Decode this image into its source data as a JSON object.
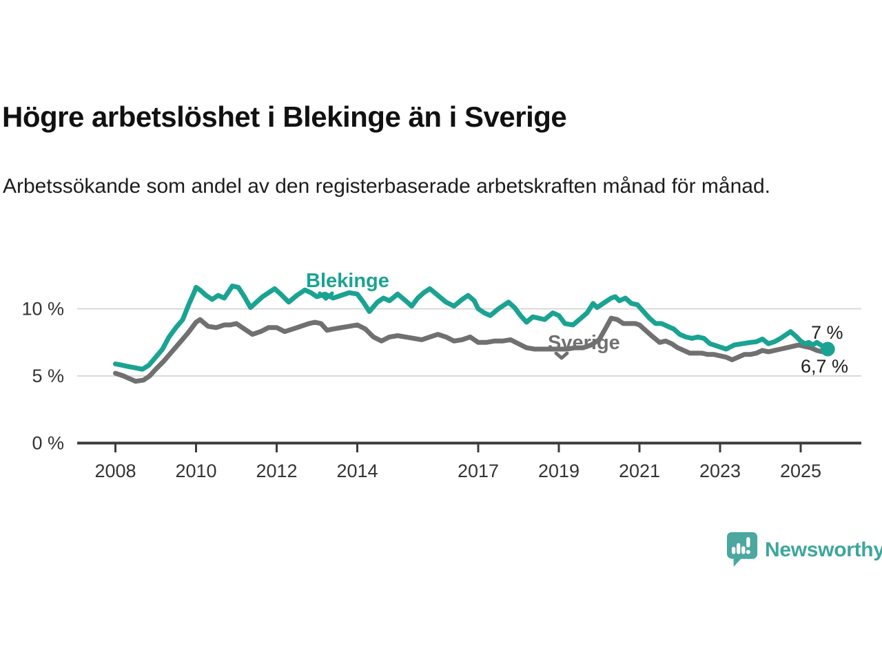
{
  "chart_data": {
    "type": "line",
    "title": "Högre arbetslöshet i Blekinge än i Sverige",
    "subtitle": "Arbetssökande som andel av den registerbaserade arbetskraften månad för månad.",
    "unit": "%",
    "grid": "horizontal",
    "legend_position": "inline-labels",
    "x_range": [
      2008,
      2025.67
    ],
    "ylim": [
      0,
      12.8
    ],
    "x_axis": {
      "ticks": [
        2008,
        2010,
        2012,
        2014,
        2017,
        2019,
        2021,
        2023,
        2025
      ]
    },
    "y_axis": {
      "ticks": [
        {
          "value": 10,
          "label": "10 %"
        },
        {
          "value": 5,
          "label": "5 %"
        },
        {
          "value": 0,
          "label": "0 %"
        }
      ]
    },
    "series": [
      {
        "name": "Blekinge",
        "color": "#1aa392",
        "end_label": "7 %",
        "end_dot": true,
        "points": [
          [
            2008.0,
            5.9
          ],
          [
            2008.17,
            5.8
          ],
          [
            2008.33,
            5.7
          ],
          [
            2008.5,
            5.6
          ],
          [
            2008.67,
            5.5
          ],
          [
            2008.83,
            5.8
          ],
          [
            2009.0,
            6.4
          ],
          [
            2009.17,
            7.0
          ],
          [
            2009.33,
            7.9
          ],
          [
            2009.5,
            8.6
          ],
          [
            2009.67,
            9.2
          ],
          [
            2009.83,
            10.4
          ],
          [
            2009.95,
            11.2
          ],
          [
            2010.0,
            11.6
          ],
          [
            2010.1,
            11.4
          ],
          [
            2010.25,
            11.0
          ],
          [
            2010.4,
            10.7
          ],
          [
            2010.55,
            11.0
          ],
          [
            2010.7,
            10.8
          ],
          [
            2010.9,
            11.7
          ],
          [
            2011.05,
            11.6
          ],
          [
            2011.2,
            10.9
          ],
          [
            2011.35,
            10.1
          ],
          [
            2011.5,
            10.5
          ],
          [
            2011.65,
            10.9
          ],
          [
            2011.8,
            11.2
          ],
          [
            2011.95,
            11.5
          ],
          [
            2012.1,
            11.1
          ],
          [
            2012.3,
            10.5
          ],
          [
            2012.5,
            11.0
          ],
          [
            2012.7,
            11.4
          ],
          [
            2012.85,
            11.2
          ],
          [
            2013.0,
            10.9
          ],
          [
            2013.2,
            11.1
          ],
          [
            2013.4,
            10.8
          ],
          [
            2013.6,
            11.0
          ],
          [
            2013.8,
            11.2
          ],
          [
            2014.0,
            11.1
          ],
          [
            2014.15,
            10.5
          ],
          [
            2014.3,
            9.8
          ],
          [
            2014.5,
            10.5
          ],
          [
            2014.65,
            10.8
          ],
          [
            2014.8,
            10.6
          ],
          [
            2015.0,
            11.1
          ],
          [
            2015.2,
            10.6
          ],
          [
            2015.35,
            10.2
          ],
          [
            2015.5,
            10.8
          ],
          [
            2015.65,
            11.2
          ],
          [
            2015.8,
            11.5
          ],
          [
            2016.0,
            11.0
          ],
          [
            2016.2,
            10.5
          ],
          [
            2016.4,
            10.2
          ],
          [
            2016.6,
            10.7
          ],
          [
            2016.75,
            11.0
          ],
          [
            2016.9,
            10.6
          ],
          [
            2017.0,
            10.0
          ],
          [
            2017.15,
            9.7
          ],
          [
            2017.3,
            9.5
          ],
          [
            2017.5,
            10.0
          ],
          [
            2017.75,
            10.5
          ],
          [
            2017.9,
            10.1
          ],
          [
            2018.05,
            9.5
          ],
          [
            2018.2,
            9.0
          ],
          [
            2018.35,
            9.4
          ],
          [
            2018.5,
            9.3
          ],
          [
            2018.65,
            9.2
          ],
          [
            2018.85,
            9.7
          ],
          [
            2019.0,
            9.5
          ],
          [
            2019.15,
            8.9
          ],
          [
            2019.35,
            8.8
          ],
          [
            2019.55,
            9.3
          ],
          [
            2019.7,
            9.7
          ],
          [
            2019.85,
            10.4
          ],
          [
            2019.95,
            10.1
          ],
          [
            2020.1,
            10.4
          ],
          [
            2020.3,
            10.8
          ],
          [
            2020.4,
            10.9
          ],
          [
            2020.5,
            10.6
          ],
          [
            2020.65,
            10.8
          ],
          [
            2020.8,
            10.4
          ],
          [
            2020.95,
            10.3
          ],
          [
            2021.1,
            9.8
          ],
          [
            2021.25,
            9.3
          ],
          [
            2021.4,
            8.9
          ],
          [
            2021.55,
            8.9
          ],
          [
            2021.7,
            8.7
          ],
          [
            2021.85,
            8.5
          ],
          [
            2022.0,
            8.1
          ],
          [
            2022.15,
            7.9
          ],
          [
            2022.3,
            7.8
          ],
          [
            2022.45,
            7.9
          ],
          [
            2022.6,
            7.8
          ],
          [
            2022.75,
            7.4
          ],
          [
            2022.95,
            7.2
          ],
          [
            2023.15,
            7.0
          ],
          [
            2023.35,
            7.3
          ],
          [
            2023.55,
            7.4
          ],
          [
            2023.75,
            7.5
          ],
          [
            2023.9,
            7.55
          ],
          [
            2024.05,
            7.75
          ],
          [
            2024.2,
            7.4
          ],
          [
            2024.35,
            7.55
          ],
          [
            2024.5,
            7.8
          ],
          [
            2024.65,
            8.1
          ],
          [
            2024.75,
            8.3
          ],
          [
            2024.9,
            7.9
          ],
          [
            2025.0,
            7.6
          ],
          [
            2025.1,
            7.4
          ],
          [
            2025.2,
            7.5
          ],
          [
            2025.3,
            7.3
          ],
          [
            2025.4,
            7.5
          ],
          [
            2025.55,
            7.2
          ],
          [
            2025.67,
            7.0
          ]
        ]
      },
      {
        "name": "Sverige",
        "color": "#707070",
        "end_label": "6,7 %",
        "end_dot": false,
        "points": [
          [
            2008.0,
            5.2
          ],
          [
            2008.2,
            5.0
          ],
          [
            2008.35,
            4.8
          ],
          [
            2008.5,
            4.6
          ],
          [
            2008.7,
            4.7
          ],
          [
            2008.85,
            5.0
          ],
          [
            2009.0,
            5.5
          ],
          [
            2009.2,
            6.1
          ],
          [
            2009.4,
            6.8
          ],
          [
            2009.6,
            7.5
          ],
          [
            2009.8,
            8.2
          ],
          [
            2010.0,
            9.0
          ],
          [
            2010.1,
            9.2
          ],
          [
            2010.3,
            8.7
          ],
          [
            2010.5,
            8.6
          ],
          [
            2010.7,
            8.8
          ],
          [
            2010.85,
            8.8
          ],
          [
            2011.0,
            8.9
          ],
          [
            2011.2,
            8.5
          ],
          [
            2011.4,
            8.1
          ],
          [
            2011.6,
            8.3
          ],
          [
            2011.8,
            8.6
          ],
          [
            2012.0,
            8.6
          ],
          [
            2012.2,
            8.3
          ],
          [
            2012.4,
            8.5
          ],
          [
            2012.6,
            8.7
          ],
          [
            2012.8,
            8.9
          ],
          [
            2012.95,
            9.0
          ],
          [
            2013.1,
            8.9
          ],
          [
            2013.25,
            8.4
          ],
          [
            2013.4,
            8.5
          ],
          [
            2013.6,
            8.6
          ],
          [
            2013.8,
            8.7
          ],
          [
            2014.0,
            8.8
          ],
          [
            2014.2,
            8.5
          ],
          [
            2014.4,
            7.9
          ],
          [
            2014.6,
            7.6
          ],
          [
            2014.8,
            7.9
          ],
          [
            2015.0,
            8.0
          ],
          [
            2015.2,
            7.9
          ],
          [
            2015.4,
            7.8
          ],
          [
            2015.6,
            7.7
          ],
          [
            2015.8,
            7.9
          ],
          [
            2016.0,
            8.1
          ],
          [
            2016.2,
            7.9
          ],
          [
            2016.4,
            7.6
          ],
          [
            2016.6,
            7.7
          ],
          [
            2016.8,
            7.9
          ],
          [
            2017.0,
            7.5
          ],
          [
            2017.2,
            7.5
          ],
          [
            2017.4,
            7.6
          ],
          [
            2017.6,
            7.6
          ],
          [
            2017.8,
            7.7
          ],
          [
            2018.0,
            7.4
          ],
          [
            2018.2,
            7.1
          ],
          [
            2018.4,
            7.0
          ],
          [
            2018.6,
            7.0
          ],
          [
            2018.8,
            7.0
          ],
          [
            2019.0,
            7.0
          ],
          [
            2019.2,
            7.0
          ],
          [
            2019.4,
            7.1
          ],
          [
            2019.6,
            7.1
          ],
          [
            2019.8,
            7.3
          ],
          [
            2020.0,
            7.7
          ],
          [
            2020.15,
            8.5
          ],
          [
            2020.3,
            9.3
          ],
          [
            2020.45,
            9.2
          ],
          [
            2020.6,
            8.9
          ],
          [
            2020.75,
            8.9
          ],
          [
            2020.9,
            8.9
          ],
          [
            2021.0,
            8.8
          ],
          [
            2021.15,
            8.4
          ],
          [
            2021.3,
            8.0
          ],
          [
            2021.5,
            7.5
          ],
          [
            2021.65,
            7.6
          ],
          [
            2021.8,
            7.4
          ],
          [
            2021.95,
            7.1
          ],
          [
            2022.1,
            6.9
          ],
          [
            2022.25,
            6.7
          ],
          [
            2022.4,
            6.7
          ],
          [
            2022.55,
            6.7
          ],
          [
            2022.7,
            6.6
          ],
          [
            2022.85,
            6.6
          ],
          [
            2023.0,
            6.5
          ],
          [
            2023.15,
            6.4
          ],
          [
            2023.3,
            6.2
          ],
          [
            2023.45,
            6.4
          ],
          [
            2023.6,
            6.6
          ],
          [
            2023.75,
            6.6
          ],
          [
            2023.9,
            6.7
          ],
          [
            2024.05,
            6.9
          ],
          [
            2024.2,
            6.8
          ],
          [
            2024.35,
            6.9
          ],
          [
            2024.5,
            7.0
          ],
          [
            2024.65,
            7.1
          ],
          [
            2024.8,
            7.2
          ],
          [
            2024.95,
            7.3
          ],
          [
            2025.1,
            7.2
          ],
          [
            2025.25,
            7.1
          ],
          [
            2025.4,
            6.9
          ],
          [
            2025.55,
            6.8
          ],
          [
            2025.67,
            6.7
          ]
        ]
      }
    ]
  },
  "branding": {
    "logo_text": "Newsworthy",
    "logo_text_color": "#3ea69d",
    "logo_bubble_color": "#4ba7a0"
  }
}
